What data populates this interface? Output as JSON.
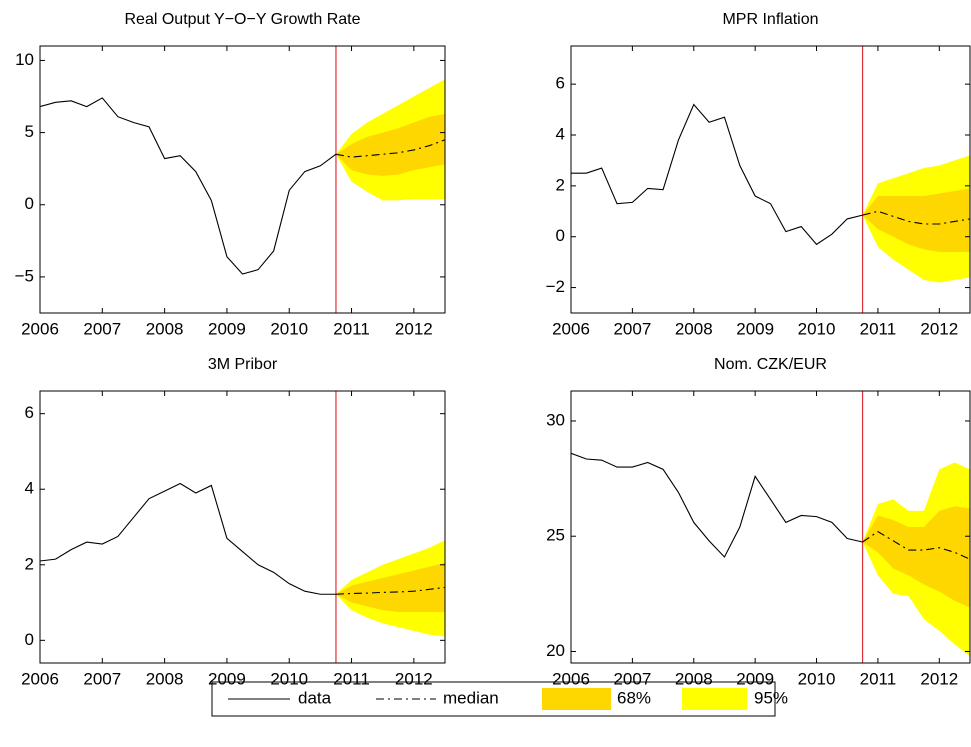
{
  "legend": [
    {
      "name": "data",
      "color": "#000000",
      "dash": "solid"
    },
    {
      "name": "median",
      "color": "#000000",
      "dash": "dashdot"
    },
    {
      "name": "68%",
      "color": "#ffd700"
    },
    {
      "name": "95%",
      "color": "#ffff00"
    }
  ],
  "chart_data": [
    {
      "type": "line",
      "title": "Real Output Y−O−Y Growth Rate",
      "xlim": [
        2006,
        2012.5
      ],
      "xticks": [
        2006,
        2007,
        2008,
        2009,
        2010,
        2011,
        2012
      ],
      "ylim": [
        -7.5,
        11
      ],
      "yticks": [
        {
          "value": -5,
          "label": "−5"
        },
        0,
        5,
        10
      ],
      "vline": 2010.75,
      "vline_color": "#e0303a",
      "history": {
        "x": [
          2006,
          2006.25,
          2006.5,
          2006.75,
          2007,
          2007.25,
          2007.5,
          2007.75,
          2008,
          2008.25,
          2008.5,
          2008.75,
          2009,
          2009.25,
          2009.5,
          2009.75,
          2010,
          2010.25,
          2010.5,
          2010.75
        ],
        "values": [
          6.8,
          7.1,
          7.2,
          6.8,
          7.4,
          6.1,
          5.7,
          5.4,
          3.2,
          3.4,
          2.3,
          0.3,
          -3.6,
          -4.8,
          -4.5,
          -3.2,
          1.0,
          2.3,
          2.7,
          3.5
        ]
      },
      "forecast": {
        "x": [
          2010.75,
          2011,
          2011.25,
          2011.5,
          2011.75,
          2012,
          2012.25,
          2012.5
        ],
        "median": [
          3.5,
          3.3,
          3.4,
          3.5,
          3.6,
          3.8,
          4.1,
          4.5
        ],
        "lo95": [
          3.5,
          1.6,
          0.9,
          0.3,
          0.3,
          0.4,
          0.4,
          0.4
        ],
        "hi95": [
          3.5,
          4.9,
          5.7,
          6.3,
          6.9,
          7.5,
          8.1,
          8.7
        ],
        "lo68": [
          3.5,
          2.4,
          2.1,
          2.0,
          2.1,
          2.4,
          2.6,
          2.8
        ],
        "hi68": [
          3.5,
          4.2,
          4.7,
          5.0,
          5.3,
          5.7,
          6.1,
          6.3
        ]
      }
    },
    {
      "type": "line",
      "title": "MPR Inflation",
      "xlim": [
        2006,
        2012.5
      ],
      "xticks": [
        2006,
        2007,
        2008,
        2009,
        2010,
        2011,
        2012
      ],
      "ylim": [
        -3,
        7.5
      ],
      "yticks": [
        {
          "value": -2,
          "label": "−2"
        },
        0,
        2,
        4,
        6
      ],
      "vline": 2010.75,
      "vline_color": "#e0303a",
      "history": {
        "x": [
          2006,
          2006.25,
          2006.5,
          2006.75,
          2007,
          2007.25,
          2007.5,
          2007.75,
          2008,
          2008.25,
          2008.5,
          2008.75,
          2009,
          2009.25,
          2009.5,
          2009.75,
          2010,
          2010.25,
          2010.5,
          2010.75
        ],
        "values": [
          2.5,
          2.5,
          2.7,
          1.3,
          1.35,
          1.9,
          1.85,
          3.8,
          5.2,
          4.5,
          4.7,
          2.8,
          1.6,
          1.3,
          0.2,
          0.4,
          -0.3,
          0.1,
          0.7,
          0.85
        ]
      },
      "forecast": {
        "x": [
          2010.75,
          2011,
          2011.25,
          2011.5,
          2011.75,
          2012,
          2012.25,
          2012.5
        ],
        "median": [
          0.85,
          1.0,
          0.8,
          0.6,
          0.5,
          0.5,
          0.6,
          0.7
        ],
        "lo95": [
          0.85,
          -0.4,
          -0.9,
          -1.3,
          -1.7,
          -1.8,
          -1.7,
          -1.6
        ],
        "hi95": [
          0.85,
          2.1,
          2.3,
          2.5,
          2.7,
          2.8,
          3.0,
          3.2
        ],
        "lo68": [
          0.85,
          0.3,
          0.0,
          -0.3,
          -0.5,
          -0.6,
          -0.6,
          -0.6
        ],
        "hi68": [
          0.85,
          1.6,
          1.6,
          1.6,
          1.6,
          1.7,
          1.8,
          1.9
        ]
      }
    },
    {
      "type": "line",
      "title": "3M Pribor",
      "xlim": [
        2006,
        2012.5
      ],
      "xticks": [
        2006,
        2007,
        2008,
        2009,
        2010,
        2011,
        2012
      ],
      "ylim": [
        -0.6,
        6.6
      ],
      "yticks": [
        0,
        2,
        4,
        6
      ],
      "vline": 2010.75,
      "vline_color": "#e0303a",
      "history": {
        "x": [
          2006,
          2006.25,
          2006.5,
          2006.75,
          2007,
          2007.25,
          2007.5,
          2007.75,
          2008,
          2008.25,
          2008.5,
          2008.75,
          2009,
          2009.25,
          2009.5,
          2009.75,
          2010,
          2010.25,
          2010.5,
          2010.75
        ],
        "values": [
          2.1,
          2.15,
          2.4,
          2.6,
          2.55,
          2.75,
          3.25,
          3.75,
          3.95,
          4.15,
          3.9,
          4.1,
          2.7,
          2.35,
          2.0,
          1.8,
          1.5,
          1.3,
          1.22,
          1.22
        ]
      },
      "forecast": {
        "x": [
          2010.75,
          2011,
          2011.25,
          2011.5,
          2011.75,
          2012,
          2012.25,
          2012.5
        ],
        "median": [
          1.22,
          1.24,
          1.25,
          1.27,
          1.28,
          1.3,
          1.35,
          1.4
        ],
        "lo95": [
          1.22,
          0.8,
          0.6,
          0.45,
          0.35,
          0.25,
          0.15,
          0.1
        ],
        "hi95": [
          1.22,
          1.6,
          1.8,
          2.0,
          2.15,
          2.3,
          2.45,
          2.65
        ],
        "lo68": [
          1.22,
          1.0,
          0.9,
          0.8,
          0.75,
          0.75,
          0.75,
          0.75
        ],
        "hi68": [
          1.22,
          1.45,
          1.55,
          1.65,
          1.75,
          1.85,
          1.95,
          2.05
        ]
      }
    },
    {
      "type": "line",
      "title": "Nom. CZK/EUR",
      "xlim": [
        2006,
        2012.5
      ],
      "xticks": [
        2006,
        2007,
        2008,
        2009,
        2010,
        2011,
        2012
      ],
      "ylim": [
        19.5,
        31.3
      ],
      "yticks": [
        20,
        25,
        30
      ],
      "vline": 2010.75,
      "vline_color": "#e0303a",
      "history": {
        "x": [
          2006,
          2006.25,
          2006.5,
          2006.75,
          2007,
          2007.25,
          2007.5,
          2007.75,
          2008,
          2008.25,
          2008.5,
          2008.75,
          2009,
          2009.25,
          2009.5,
          2009.75,
          2010,
          2010.25,
          2010.5,
          2010.75
        ],
        "values": [
          28.6,
          28.35,
          28.3,
          28.0,
          28.0,
          28.2,
          27.9,
          26.9,
          25.6,
          24.8,
          24.1,
          25.4,
          27.6,
          26.6,
          25.6,
          25.9,
          25.85,
          25.6,
          24.9,
          24.75
        ]
      },
      "forecast": {
        "x": [
          2010.75,
          2011,
          2011.25,
          2011.5,
          2011.75,
          2012,
          2012.25,
          2012.5
        ],
        "median": [
          24.75,
          25.2,
          24.8,
          24.4,
          24.4,
          24.5,
          24.3,
          24.0
        ],
        "lo95": [
          24.75,
          23.3,
          22.5,
          22.4,
          21.4,
          20.9,
          20.3,
          19.8
        ],
        "hi95": [
          24.75,
          26.4,
          26.6,
          26.1,
          26.1,
          27.9,
          28.2,
          27.9
        ],
        "lo68": [
          24.75,
          24.3,
          23.6,
          23.3,
          22.9,
          22.6,
          22.2,
          21.9
        ],
        "hi68": [
          24.75,
          25.9,
          25.7,
          25.4,
          25.4,
          26.1,
          26.3,
          26.2
        ]
      }
    }
  ]
}
